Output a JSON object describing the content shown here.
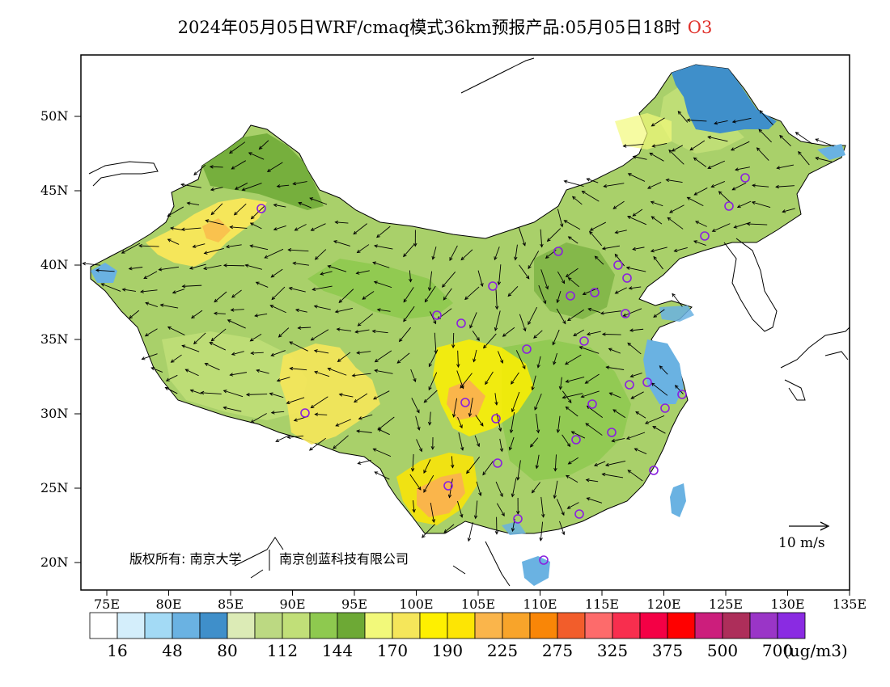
{
  "title": {
    "main": "2024年05月05日WRF/cmaq模式36km预报产品:05月05日18时",
    "species": "O3",
    "species_color": "#e0312b"
  },
  "axes": {
    "lat_labels": [
      "50N",
      "45N",
      "40N",
      "35N",
      "30N",
      "25N",
      "20N"
    ],
    "lon_labels": [
      "75E",
      "80E",
      "85E",
      "90E",
      "95E",
      "100E",
      "105E",
      "110E",
      "115E",
      "120E",
      "125E",
      "130E",
      "135E"
    ]
  },
  "copyright": {
    "text1": "版权所有: 南京大学",
    "text2": "南京创蓝科技有限公司"
  },
  "wind_scale": {
    "label": "10 m/s"
  },
  "colorbar": {
    "colors": [
      "#ffffff",
      "#d4eefb",
      "#a3daf5",
      "#6ab2e2",
      "#3f8fca",
      "#dcebb6",
      "#bcd982",
      "#c1df78",
      "#8ec94f",
      "#6da935",
      "#f2f97a",
      "#f5e65a",
      "#fef000",
      "#fde504",
      "#fab54b",
      "#f8a42a",
      "#f98607",
      "#f25d2b",
      "#fd6b6b",
      "#f82e4e",
      "#f40045",
      "#ff0000",
      "#cc1e7c",
      "#ad2e5a",
      "#9a35c7",
      "#8a2be2"
    ],
    "labels": [
      "16",
      "48",
      "80",
      "112",
      "144",
      "170",
      "190",
      "225",
      "275",
      "325",
      "375",
      "500",
      "700"
    ],
    "unit": "(ug/m3)"
  },
  "map_regions": {
    "land_base_color": "#a9d06a",
    "sea_color": "#ffffff"
  }
}
